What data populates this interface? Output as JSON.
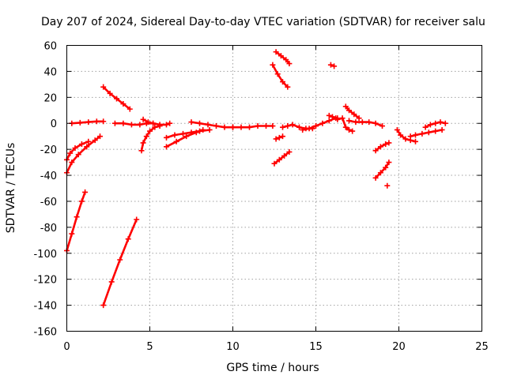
{
  "chart_data": {
    "type": "scatter",
    "title": "Day 207 of 2024, Sidereal Day-to-day VTEC variation (SDTVAR) for receiver salu",
    "xlabel": "GPS time / hours",
    "ylabel": "SDTVAR / TECUs",
    "xlim": [
      0,
      25
    ],
    "ylim": [
      -160,
      60
    ],
    "xticks": [
      0,
      5,
      10,
      15,
      20,
      25
    ],
    "yticks": [
      -160,
      -140,
      -120,
      -100,
      -80,
      -60,
      -40,
      -20,
      0,
      20,
      40,
      60
    ],
    "grid": true,
    "legend": "none",
    "marker": "plus",
    "color": "#ff0000",
    "tracks": [
      {
        "x": [
          0.0,
          0.3,
          0.6,
          0.9,
          1.1
        ],
        "y": [
          -98,
          -85,
          -72,
          -60,
          -53
        ]
      },
      {
        "x": [
          2.2,
          2.7,
          3.2,
          3.7,
          4.2
        ],
        "y": [
          -140,
          -122,
          -105,
          -89,
          -74
        ]
      },
      {
        "x": [
          0.0,
          0.3,
          0.7,
          1.2,
          1.7,
          2.0
        ],
        "y": [
          -38,
          -30,
          -24,
          -18,
          -13,
          -10
        ]
      },
      {
        "x": [
          0.0,
          0.2,
          0.5,
          0.9,
          1.3
        ],
        "y": [
          -28,
          -23,
          -19,
          -16,
          -14
        ]
      },
      {
        "x": [
          0.3,
          0.8,
          1.3,
          1.8,
          2.2
        ],
        "y": [
          0,
          0.5,
          1,
          1.5,
          1.5
        ]
      },
      {
        "x": [
          2.2,
          2.6,
          3.0,
          3.4,
          3.8
        ],
        "y": [
          28,
          23,
          19,
          15,
          11
        ]
      },
      {
        "x": [
          2.9,
          3.4,
          3.9,
          4.4,
          4.8,
          5.2
        ],
        "y": [
          0,
          0,
          -1,
          -1,
          0,
          0
        ]
      },
      {
        "x": [
          4.5,
          4.6,
          4.8,
          5.0,
          5.3,
          5.6
        ],
        "y": [
          -21,
          -15,
          -10,
          -6,
          -3,
          -2
        ]
      },
      {
        "x": [
          4.6,
          4.9,
          5.2,
          5.6,
          6.0,
          6.2
        ],
        "y": [
          3,
          1,
          0,
          -1,
          -1,
          0
        ]
      },
      {
        "x": [
          6.0,
          6.5,
          7.0,
          7.5,
          8.0,
          8.6
        ],
        "y": [
          -11,
          -9,
          -8,
          -7,
          -6,
          -5
        ]
      },
      {
        "x": [
          6.0,
          6.6,
          7.2,
          7.8,
          8.2
        ],
        "y": [
          -18,
          -14,
          -10,
          -7,
          -5
        ]
      },
      {
        "x": [
          7.5,
          8.0,
          8.5,
          9.0,
          9.5,
          10.0
        ],
        "y": [
          1,
          0,
          -1,
          -2,
          -3,
          -3
        ]
      },
      {
        "x": [
          10.0,
          10.5,
          11.0,
          11.5,
          12.0,
          12.4
        ],
        "y": [
          -3,
          -3,
          -3,
          -2,
          -2,
          -2
        ]
      },
      {
        "x": [
          12.4,
          12.7,
          13.0,
          13.3
        ],
        "y": [
          45,
          38,
          32,
          28
        ]
      },
      {
        "x": [
          12.6,
          12.9,
          13.2,
          13.4
        ],
        "y": [
          55,
          52,
          49,
          46
        ]
      },
      {
        "x": [
          12.5,
          12.8,
          13.1,
          13.4
        ],
        "y": [
          -31,
          -28,
          -25,
          -22
        ]
      },
      {
        "x": [
          12.6,
          12.8,
          13.0
        ],
        "y": [
          -12,
          -11,
          -10
        ]
      },
      {
        "x": [
          13.0,
          13.3,
          13.6,
          14.0,
          14.4,
          14.8
        ],
        "y": [
          -3,
          -2,
          -1,
          -3,
          -4,
          -4
        ]
      },
      {
        "x": [
          14.2,
          14.6,
          15.0,
          15.4,
          15.8,
          16.2
        ],
        "y": [
          -5,
          -4,
          -2,
          0,
          2,
          4
        ]
      },
      {
        "x": [
          15.8,
          16.0,
          16.3
        ],
        "y": [
          6,
          5,
          4
        ]
      },
      {
        "x": [
          15.9,
          16.1
        ],
        "y": [
          45,
          44
        ]
      },
      {
        "x": [
          16.3,
          16.6,
          16.8,
          17.0,
          17.2
        ],
        "y": [
          3,
          4,
          -3,
          -5,
          -6
        ]
      },
      {
        "x": [
          16.8,
          17.0,
          17.3,
          17.6
        ],
        "y": [
          13,
          10,
          7,
          4
        ]
      },
      {
        "x": [
          17.0,
          17.4,
          17.8,
          18.2,
          18.6,
          19.0
        ],
        "y": [
          2,
          1,
          1,
          1,
          0,
          -2
        ]
      },
      {
        "x": [
          18.6,
          18.9,
          19.2,
          19.4
        ],
        "y": [
          -21,
          -18,
          -16,
          -15
        ]
      },
      {
        "x": [
          18.6,
          18.9,
          19.2,
          19.4
        ],
        "y": [
          -42,
          -38,
          -34,
          -30
        ]
      },
      {
        "x": [
          19.3
        ],
        "y": [
          -48
        ]
      },
      {
        "x": [
          19.9,
          20.1,
          20.4,
          20.7,
          21.0
        ],
        "y": [
          -5,
          -9,
          -12,
          -13,
          -14
        ]
      },
      {
        "x": [
          20.7,
          21.0,
          21.4,
          21.8,
          22.2,
          22.6
        ],
        "y": [
          -10,
          -9,
          -8,
          -7,
          -6,
          -5
        ]
      },
      {
        "x": [
          21.6,
          21.9,
          22.2,
          22.5,
          22.8
        ],
        "y": [
          -3,
          -1,
          0,
          1,
          0
        ]
      }
    ]
  }
}
